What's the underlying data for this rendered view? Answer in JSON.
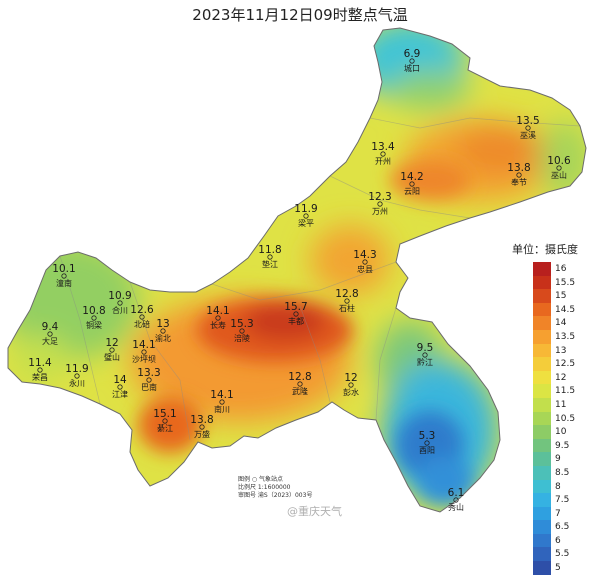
{
  "title": "2023年11月12日09时整点气温",
  "legend": {
    "title": "单位：摄氏度",
    "items": [
      {
        "label": "16",
        "color": "#b8201e"
      },
      {
        "label": "15.5",
        "color": "#c8311a"
      },
      {
        "label": "15",
        "color": "#d84a1c"
      },
      {
        "label": "14.5",
        "color": "#e8681f"
      },
      {
        "label": "14",
        "color": "#f08428"
      },
      {
        "label": "13.5",
        "color": "#f6a030"
      },
      {
        "label": "13",
        "color": "#f7b836"
      },
      {
        "label": "12.5",
        "color": "#f4cd3a"
      },
      {
        "label": "12",
        "color": "#efe040"
      },
      {
        "label": "11.5",
        "color": "#dbe544"
      },
      {
        "label": "11",
        "color": "#c2df4c"
      },
      {
        "label": "10.5",
        "color": "#a8d656"
      },
      {
        "label": "10",
        "color": "#8dcc66"
      },
      {
        "label": "9.5",
        "color": "#72c47e"
      },
      {
        "label": "9",
        "color": "#5cc09a"
      },
      {
        "label": "8.5",
        "color": "#4cc0b8"
      },
      {
        "label": "8",
        "color": "#3ebfd2"
      },
      {
        "label": "7.5",
        "color": "#35b2e2"
      },
      {
        "label": "7",
        "color": "#2fa0e0"
      },
      {
        "label": "6.5",
        "color": "#2f8cd8"
      },
      {
        "label": "6",
        "color": "#3078cc"
      },
      {
        "label": "5.5",
        "color": "#3064bc"
      },
      {
        "label": "5",
        "color": "#2e4fa8"
      }
    ]
  },
  "stations": [
    {
      "name": "城口",
      "value": "6.9"
    },
    {
      "name": "巫溪",
      "value": "13.5"
    },
    {
      "name": "开州",
      "value": "13.4"
    },
    {
      "name": "奉节",
      "value": "13.8"
    },
    {
      "name": "巫山",
      "value": "10.6"
    },
    {
      "name": "云阳",
      "value": "14.2"
    },
    {
      "name": "万州",
      "value": "12.3"
    },
    {
      "name": "梁平",
      "value": "11.9"
    },
    {
      "name": "忠县",
      "value": "14.3"
    },
    {
      "name": "垫江",
      "value": "11.8"
    },
    {
      "name": "石柱",
      "value": "12.8"
    },
    {
      "name": "潼南",
      "value": "10.1"
    },
    {
      "name": "铜梁",
      "value": "10.8"
    },
    {
      "name": "合川",
      "value": "10.9"
    },
    {
      "name": "北碚",
      "value": "12.6"
    },
    {
      "name": "渝北",
      "value": "13"
    },
    {
      "name": "长寿",
      "value": "14.1"
    },
    {
      "name": "丰都",
      "value": "15.7"
    },
    {
      "name": "大足",
      "value": "9.4"
    },
    {
      "name": "璧山",
      "value": "12"
    },
    {
      "name": "沙坪坝",
      "value": "14.1"
    },
    {
      "name": "涪陵",
      "value": "15.3"
    },
    {
      "name": "荣昌",
      "value": "11.4"
    },
    {
      "name": "永川",
      "value": "11.9"
    },
    {
      "name": "江津",
      "value": "14"
    },
    {
      "name": "巴南",
      "value": "13.3"
    },
    {
      "name": "南川",
      "value": "14.1"
    },
    {
      "name": "武隆",
      "value": "12.8"
    },
    {
      "name": "彭水",
      "value": "12"
    },
    {
      "name": "黔江",
      "value": "9.5"
    },
    {
      "name": "綦江",
      "value": "15.1"
    },
    {
      "name": "万盛",
      "value": "13.8"
    },
    {
      "name": "酉阳",
      "value": "5.3"
    },
    {
      "name": "秀山",
      "value": "6.1"
    }
  ],
  "map_info": {
    "line1": "图例  ○  气象站点",
    "line2": "比例尺  1:1600000",
    "line3": "审图号  渝S（2023）003号"
  },
  "watermark": "@重庆天气"
}
